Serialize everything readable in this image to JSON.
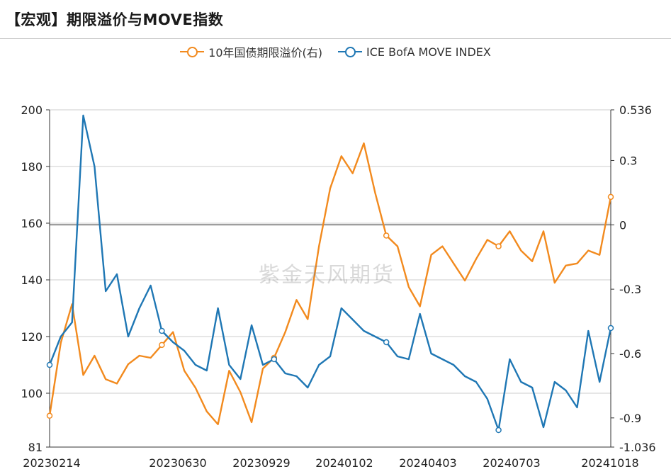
{
  "title": "【宏观】期限溢价与MOVE指数",
  "watermark": "紫金天风期货",
  "colors": {
    "orange": "#f28a1e",
    "blue": "#1f77b4",
    "grid": "#cccccc",
    "axis": "#333333"
  },
  "legend": [
    {
      "name": "10年国债期限溢价(右)",
      "color": "#f28a1e"
    },
    {
      "name": "ICE BofA MOVE INDEX",
      "color": "#1f77b4"
    }
  ],
  "chart_data": {
    "type": "line",
    "x_tick_labels": [
      "20230214",
      "20230630",
      "20230929",
      "20240102",
      "20240403",
      "20240703",
      "20241018"
    ],
    "y_left": {
      "ylim": [
        81,
        200
      ],
      "ticks": [
        81,
        100,
        120,
        140,
        160,
        180,
        200
      ]
    },
    "y_right": {
      "ylim": [
        -1.036,
        0.536
      ],
      "ticks": [
        "0.536",
        "0.3",
        "0",
        "-0.3",
        "-0.6",
        "-0.9",
        "-1.036"
      ]
    },
    "series": [
      {
        "name": "10年国债期限溢价(右)",
        "axis": "right",
        "color": "#f28a1e",
        "x": [
          0,
          2,
          4,
          6,
          8,
          10,
          12,
          14,
          16,
          18,
          20,
          22,
          24,
          26,
          28,
          30,
          32,
          34,
          36,
          38,
          40,
          42,
          44,
          46,
          48,
          50,
          52,
          54,
          56,
          58,
          60,
          62,
          64,
          66,
          68,
          70,
          72,
          74,
          76,
          78,
          80,
          82,
          84,
          86,
          88,
          90,
          92,
          94,
          96,
          98,
          100
        ],
        "values": [
          -0.89,
          -0.55,
          -0.37,
          -0.7,
          -0.61,
          -0.72,
          -0.74,
          -0.65,
          -0.61,
          -0.62,
          -0.56,
          -0.5,
          -0.68,
          -0.76,
          -0.87,
          -0.93,
          -0.68,
          -0.78,
          -0.92,
          -0.67,
          -0.62,
          -0.5,
          -0.35,
          -0.44,
          -0.1,
          0.17,
          0.32,
          0.24,
          0.38,
          0.15,
          -0.05,
          -0.1,
          -0.29,
          -0.38,
          -0.14,
          -0.1,
          -0.18,
          -0.26,
          -0.16,
          -0.07,
          -0.1,
          -0.03,
          -0.12,
          -0.17,
          -0.03,
          -0.27,
          -0.19,
          -0.18,
          -0.12,
          -0.14,
          0.13
        ]
      },
      {
        "name": "ICE BofA MOVE INDEX",
        "axis": "left",
        "color": "#1f77b4",
        "x": [
          0,
          2,
          4,
          6,
          8,
          10,
          12,
          14,
          16,
          18,
          20,
          22,
          24,
          26,
          28,
          30,
          32,
          34,
          36,
          38,
          40,
          42,
          44,
          46,
          48,
          50,
          52,
          54,
          56,
          58,
          60,
          62,
          64,
          66,
          68,
          70,
          72,
          74,
          76,
          78,
          80,
          82,
          84,
          86,
          88,
          90,
          92,
          94,
          96,
          98,
          100
        ],
        "values": [
          110,
          120,
          125,
          198,
          180,
          136,
          142,
          120,
          130,
          138,
          122,
          118,
          115,
          110,
          108,
          130,
          110,
          105,
          124,
          110,
          112,
          107,
          106,
          102,
          110,
          113,
          130,
          126,
          122,
          120,
          118,
          113,
          112,
          128,
          114,
          112,
          110,
          106,
          104,
          98,
          87,
          112,
          104,
          102,
          88,
          104,
          101,
          95,
          122,
          104,
          123
        ]
      }
    ]
  }
}
